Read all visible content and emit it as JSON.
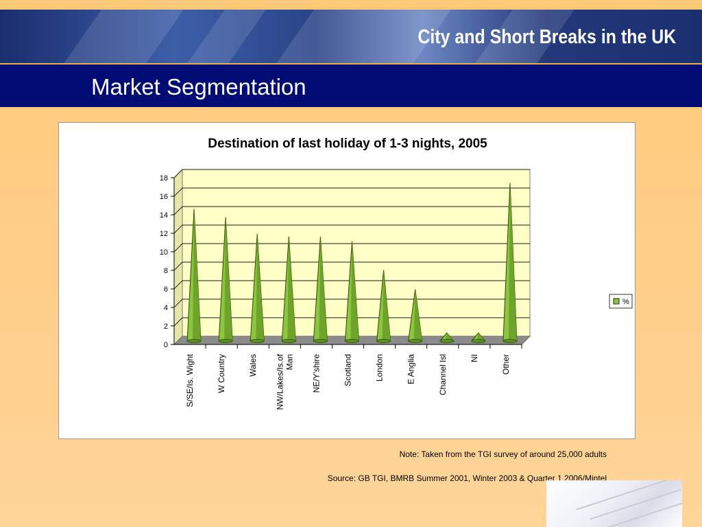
{
  "header": {
    "banner_title": "City and Short Breaks in the UK",
    "page_title": "Market Segmentation"
  },
  "chart_data": {
    "type": "bar",
    "title": "Destination of last holiday of 1-3 nights, 2005",
    "categories": [
      "S/SE/Is. Wight",
      "W Country",
      "Wales",
      "NW/Lakes/Is.of Man",
      "NE/Y'shire",
      "Scotland",
      "London",
      "E Anglia",
      "Channel Isl",
      "NI",
      "Other"
    ],
    "category_lines": [
      [
        "S/SE/Is. Wight"
      ],
      [
        "W Country"
      ],
      [
        "Wales"
      ],
      [
        "NW/Lakes/Is.of",
        "Man"
      ],
      [
        "NE/Y'shire"
      ],
      [
        "Scotland"
      ],
      [
        "London"
      ],
      [
        "E Anglia"
      ],
      [
        "Channel Isl"
      ],
      [
        "NI"
      ],
      [
        "Other"
      ]
    ],
    "series": [
      {
        "name": "%",
        "values": [
          14.2,
          13.3,
          11.5,
          11.2,
          11.2,
          10.7,
          7.6,
          5.5,
          0.8,
          0.8,
          17.0
        ]
      }
    ],
    "ylim": [
      0,
      18
    ],
    "yticks": [
      0,
      2,
      4,
      6,
      8,
      10,
      12,
      14,
      16,
      18
    ],
    "grid": true,
    "legend_position": "right",
    "colors": {
      "bar": "#8cc63f",
      "bar_edge": "#2a4a00",
      "plot_bg": "#ffffc6",
      "floor": "#8c8c8c"
    }
  },
  "footer": {
    "note": "Note: Taken from the TGI survey of around 25,000 adults",
    "source": "Source: GB TGI, BMRB Summer 2001, Winter 2003 & Quarter 1 2006/Mintel"
  }
}
